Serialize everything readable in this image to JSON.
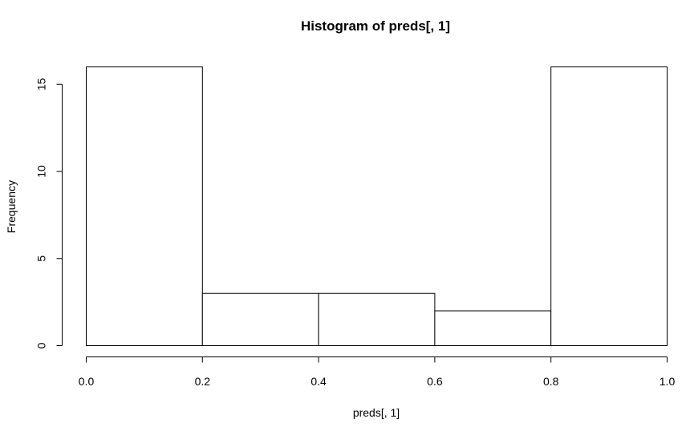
{
  "chart_data": {
    "type": "bar",
    "title": "Histogram of preds[, 1]",
    "xlabel": "preds[, 1]",
    "ylabel": "Frequency",
    "bins": [
      {
        "start": 0.0,
        "end": 0.2,
        "count": 16
      },
      {
        "start": 0.2,
        "end": 0.4,
        "count": 3
      },
      {
        "start": 0.4,
        "end": 0.6,
        "count": 3
      },
      {
        "start": 0.6,
        "end": 0.8,
        "count": 2
      },
      {
        "start": 0.8,
        "end": 1.0,
        "count": 16
      }
    ],
    "x_ticks": [
      "0.0",
      "0.2",
      "0.4",
      "0.6",
      "0.8",
      "1.0"
    ],
    "y_ticks": [
      "0",
      "5",
      "10",
      "15"
    ],
    "xlim": [
      0,
      1
    ],
    "ylim": [
      0,
      16
    ],
    "grid": false,
    "bar_fill": "#ffffff",
    "bar_stroke": "#000000"
  }
}
